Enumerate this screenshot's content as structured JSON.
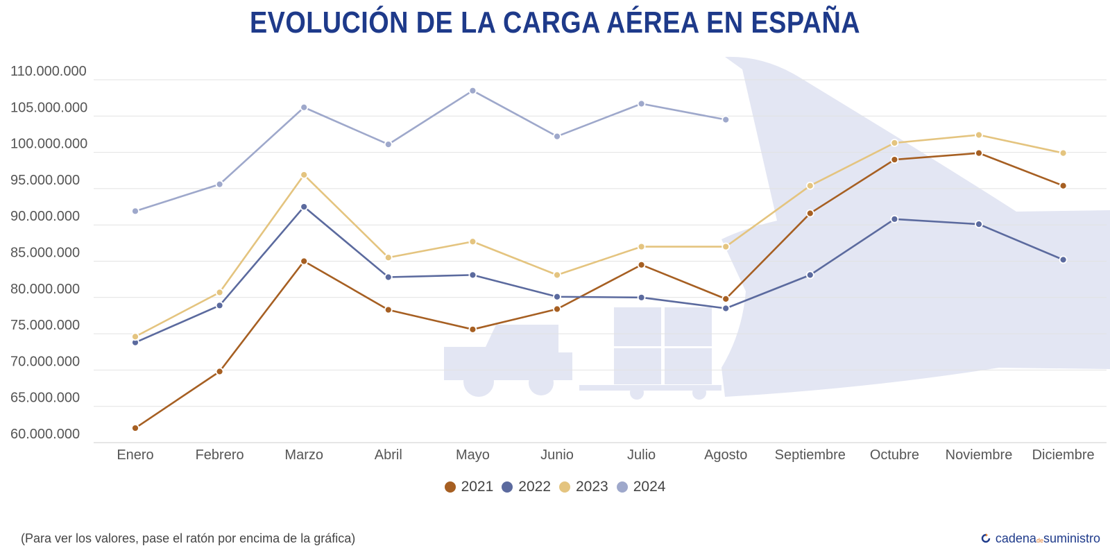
{
  "header": {
    "title": "EVOLUCIÓN DE LA CARGA AÉREA EN ESPAÑA"
  },
  "footer": {
    "note": "(Para ver los valores, pase el ratón por encima de la gráfica)",
    "brand_main": "cadena",
    "brand_small": "de",
    "brand_tail": "suministro"
  },
  "colors": {
    "2021": "#a65f22",
    "2022": "#5b6a9e",
    "2023": "#e4c47f",
    "2024": "#9ea8cb",
    "title": "#1e3a8a",
    "background_art": "#e3e6f3"
  },
  "chart_data": {
    "type": "line",
    "categories": [
      "Enero",
      "Febrero",
      "Marzo",
      "Abril",
      "Mayo",
      "Junio",
      "Julio",
      "Agosto",
      "Septiembre",
      "Octubre",
      "Noviembre",
      "Diciembre"
    ],
    "ylim": [
      60000000,
      110000000
    ],
    "yticks": [
      "110.000.000",
      "105.000.000",
      "100.000.000",
      "95.000.000",
      "90.000.000",
      "85.000.000",
      "80.000.000",
      "75.000.000",
      "70.000.000",
      "65.000.000",
      "60.000.000"
    ],
    "ytick_values": [
      110000000,
      105000000,
      100000000,
      95000000,
      90000000,
      85000000,
      80000000,
      75000000,
      70000000,
      65000000,
      60000000
    ],
    "legend_position": "bottom-center",
    "grid": true,
    "series": [
      {
        "name": "2021",
        "values": [
          62000000,
          69800000,
          85000000,
          78300000,
          75600000,
          78400000,
          84500000,
          79800000,
          91600000,
          99000000,
          99900000,
          95400000
        ]
      },
      {
        "name": "2022",
        "values": [
          73800000,
          78900000,
          92500000,
          82800000,
          83100000,
          80100000,
          80000000,
          78500000,
          83100000,
          90800000,
          90100000,
          85200000
        ]
      },
      {
        "name": "2023",
        "values": [
          74600000,
          80700000,
          96900000,
          85500000,
          87700000,
          83100000,
          87000000,
          87000000,
          95400000,
          101300000,
          102400000,
          99900000
        ]
      },
      {
        "name": "2024",
        "values": [
          91900000,
          95600000,
          106200000,
          101100000,
          108500000,
          102200000,
          106700000,
          104500000,
          null,
          null,
          null,
          null
        ]
      }
    ]
  }
}
